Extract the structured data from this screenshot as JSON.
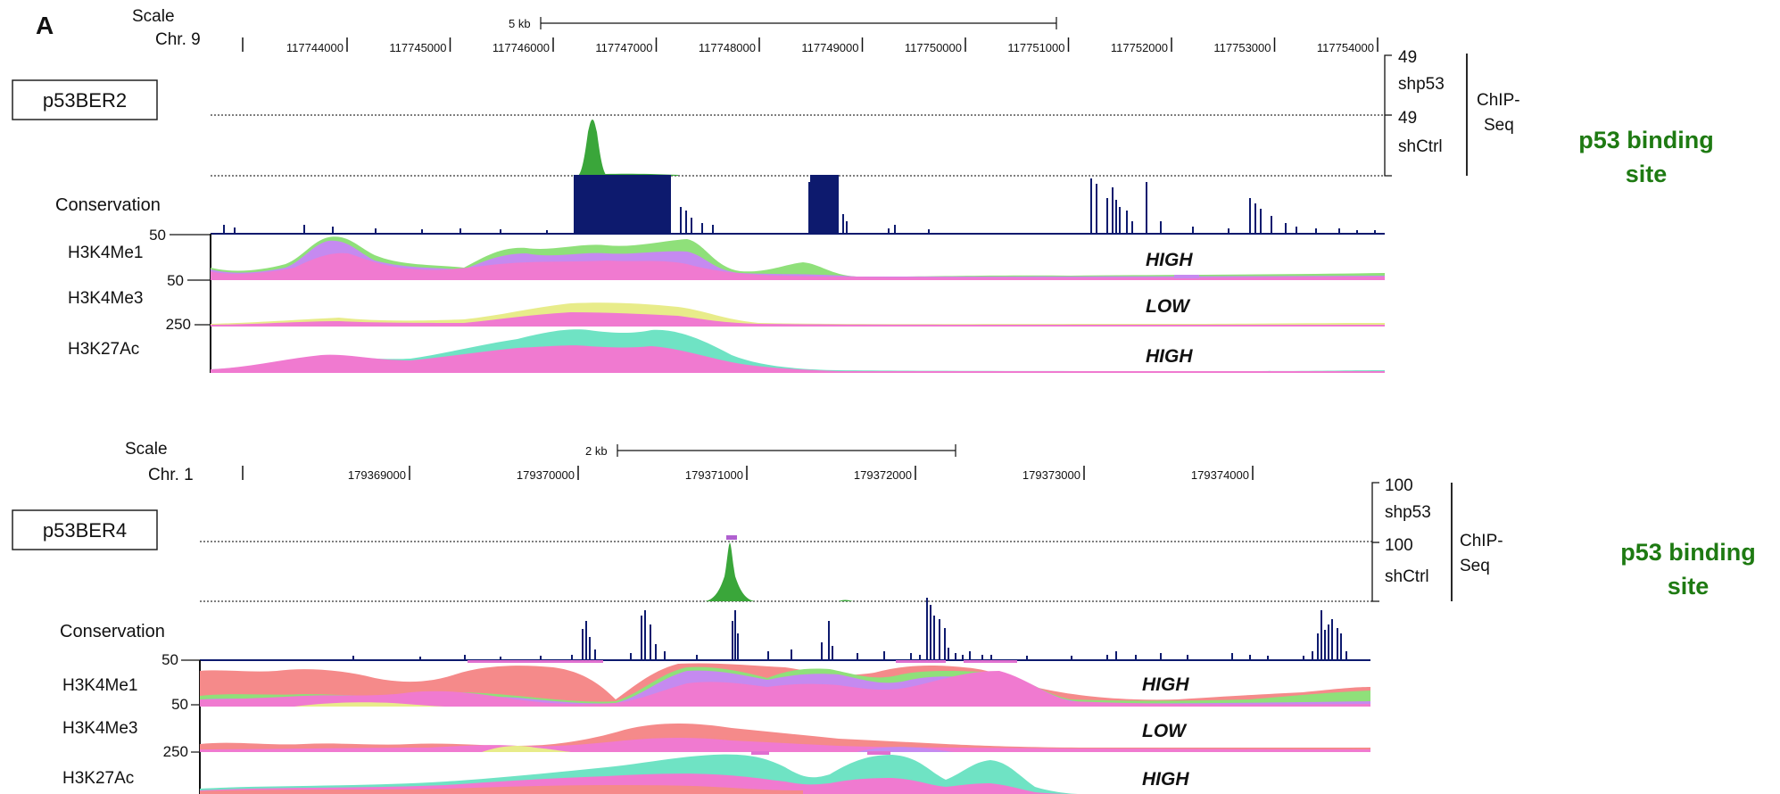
{
  "panel_letter": "A",
  "scale_label": "Scale",
  "chip_label_line1": "ChIP-",
  "chip_label_line2": "Seq",
  "binding_line1": "p53 binding",
  "binding_line2": "site",
  "conservation_label": "Conservation",
  "track_labels": [
    "H3K4Me1",
    "H3K4Me3",
    "H3K27Ac"
  ],
  "track_levels": [
    "HIGH",
    "LOW",
    "HIGH"
  ],
  "track_scales": [
    "50",
    "50",
    "250"
  ],
  "panels": [
    {
      "name": "p53BER2",
      "chr": "Chr. 9",
      "scalebar": "5 kb",
      "shp53": "shp53",
      "shctrl": "shCtrl",
      "chip_max": "49",
      "positions": [
        "117744000",
        "117745000",
        "117746000",
        "117747000",
        "117748000",
        "117749000",
        "117750000",
        "117751000",
        "117752000",
        "117753000",
        "117754000"
      ]
    },
    {
      "name": "p53BER4",
      "chr": "Chr. 1",
      "scalebar": "2 kb",
      "shp53": "shp53",
      "shctrl": "shCtrl",
      "chip_max": "100",
      "positions": [
        "179369000",
        "179370000",
        "179371000",
        "179372000",
        "179373000",
        "179374000"
      ]
    }
  ],
  "colors": {
    "chip": "#3aa63a",
    "conservation": "#0d1a6e",
    "pink": "#f07ad0",
    "violet": "#c58af0",
    "green": "#8fe07a",
    "yellow": "#e8ec8a",
    "teal": "#6fe3c4",
    "salmon": "#f58a8a",
    "binding_text": "#1e7a12"
  }
}
